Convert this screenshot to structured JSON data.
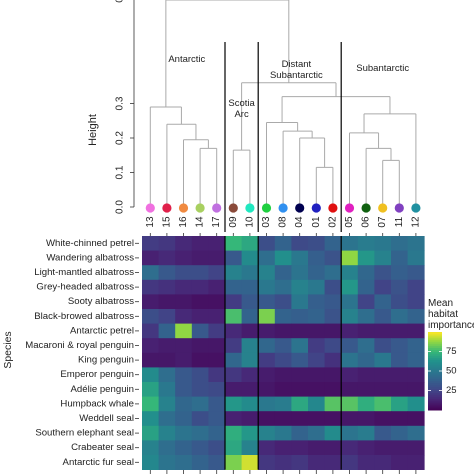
{
  "chart_data": [
    {
      "type": "dendrogram",
      "ylabel": "Height",
      "ylim": [
        0,
        0.6
      ],
      "yticks": [
        "0.0",
        "0.1",
        "0.2",
        "0.3"
      ],
      "leaves": [
        "13",
        "15",
        "16",
        "14",
        "17",
        "09",
        "10",
        "03",
        "08",
        "04",
        "01",
        "02",
        "05",
        "06",
        "07",
        "11",
        "12"
      ],
      "leaf_colors": [
        "#f070e0",
        "#e0204a",
        "#f08a40",
        "#a8d060",
        "#c070e0",
        "#8a4a3a",
        "#20e8c0",
        "#20d040",
        "#3090f0",
        "#000050",
        "#2020c0",
        "#e01010",
        "#e020c0",
        "#106010",
        "#f0c020",
        "#8040c0",
        "#2090a0"
      ],
      "merges": [
        {
          "a": 3,
          "b": 4,
          "h": 0.17
        },
        {
          "a": 2,
          "b": 17,
          "h": 0.195
        },
        {
          "a": 1,
          "b": 18,
          "h": 0.24
        },
        {
          "a": 0,
          "b": 19,
          "h": 0.29
        },
        {
          "a": 5,
          "b": 6,
          "h": 0.165
        },
        {
          "a": 10,
          "b": 11,
          "h": 0.115
        },
        {
          "a": 9,
          "b": 22,
          "h": 0.2
        },
        {
          "a": 8,
          "b": 23,
          "h": 0.22
        },
        {
          "a": 7,
          "b": 24,
          "h": 0.245
        },
        {
          "a": 14,
          "b": 15,
          "h": 0.135
        },
        {
          "a": 13,
          "b": 26,
          "h": 0.17
        },
        {
          "a": 12,
          "b": 27,
          "h": 0.215
        },
        {
          "a": 28,
          "b": 16,
          "h": 0.27
        },
        {
          "a": 25,
          "b": 29,
          "h": 0.32
        },
        {
          "a": 21,
          "b": 30,
          "h": 0.36
        },
        {
          "a": 20,
          "b": 31,
          "h": 0.6
        }
      ],
      "group_labels": [
        {
          "text": [
            "Antarctic"
          ],
          "leaf_pos": 2.2
        },
        {
          "text": [
            "Scotia",
            "Arc"
          ],
          "leaf_pos": 5.5
        },
        {
          "text": [
            "Distant",
            "Subantarctic"
          ],
          "leaf_pos": 8.8
        },
        {
          "text": [
            "Subantarctic"
          ],
          "leaf_pos": 14.0
        }
      ],
      "group_boundaries": [
        4.5,
        6.5,
        11.5
      ]
    },
    {
      "type": "heatmap",
      "ylabel": "Species",
      "legend_title": [
        "Mean",
        "habitat",
        "importance"
      ],
      "legend_ticks": [
        25,
        50,
        75
      ],
      "value_range": [
        0,
        100
      ],
      "columns": [
        "13",
        "15",
        "16",
        "14",
        "17",
        "09",
        "10",
        "03",
        "08",
        "04",
        "01",
        "02",
        "05",
        "06",
        "07",
        "11",
        "12"
      ],
      "rows": [
        "White-chinned petrel",
        "Wandering albatross",
        "Light-mantled albatross",
        "Grey-headed albatross",
        "Sooty albatross",
        "Black-browed albatross",
        "Antarctic petrel",
        "Macaroni & royal penguin",
        "King penguin",
        "Emperor penguin",
        "Adélie penguin",
        "Humpback whale",
        "Weddell seal",
        "Southern elephant seal",
        "Crabeater seal",
        "Antarctic fur seal"
      ],
      "values": [
        [
          22,
          20,
          15,
          12,
          12,
          75,
          70,
          30,
          40,
          28,
          30,
          40,
          48,
          52,
          50,
          45,
          48
        ],
        [
          12,
          15,
          12,
          10,
          10,
          35,
          60,
          45,
          62,
          50,
          38,
          32,
          88,
          65,
          55,
          40,
          50
        ],
        [
          45,
          35,
          30,
          30,
          25,
          55,
          50,
          55,
          40,
          48,
          40,
          45,
          55,
          42,
          32,
          38,
          35
        ],
        [
          20,
          18,
          15,
          15,
          12,
          40,
          40,
          50,
          45,
          55,
          50,
          30,
          65,
          40,
          25,
          32,
          25
        ],
        [
          10,
          8,
          8,
          6,
          6,
          22,
          35,
          35,
          30,
          50,
          38,
          35,
          48,
          25,
          40,
          30,
          25
        ],
        [
          30,
          25,
          15,
          12,
          12,
          78,
          40,
          85,
          40,
          38,
          40,
          32,
          55,
          45,
          35,
          45,
          40
        ],
        [
          20,
          40,
          88,
          35,
          22,
          15,
          10,
          10,
          8,
          8,
          8,
          8,
          12,
          10,
          10,
          10,
          10
        ],
        [
          12,
          10,
          10,
          8,
          8,
          22,
          55,
          42,
          35,
          48,
          22,
          28,
          35,
          45,
          30,
          35,
          40
        ],
        [
          8,
          8,
          10,
          6,
          6,
          42,
          55,
          22,
          28,
          35,
          25,
          18,
          48,
          42,
          50,
          35,
          40
        ],
        [
          60,
          45,
          35,
          30,
          20,
          20,
          15,
          10,
          8,
          8,
          8,
          8,
          12,
          10,
          10,
          10,
          10
        ],
        [
          68,
          50,
          35,
          30,
          28,
          10,
          10,
          8,
          6,
          6,
          6,
          6,
          8,
          8,
          8,
          8,
          8
        ],
        [
          75,
          55,
          42,
          45,
          35,
          65,
          60,
          50,
          52,
          70,
          58,
          80,
          80,
          72,
          78,
          68,
          62
        ],
        [
          62,
          45,
          40,
          30,
          35,
          12,
          10,
          6,
          6,
          6,
          6,
          6,
          8,
          8,
          6,
          6,
          6
        ],
        [
          68,
          55,
          48,
          45,
          40,
          72,
          65,
          55,
          50,
          40,
          45,
          60,
          48,
          52,
          35,
          40,
          45
        ],
        [
          55,
          45,
          40,
          35,
          30,
          70,
          55,
          15,
          12,
          12,
          10,
          10,
          15,
          12,
          10,
          10,
          10
        ],
        [
          58,
          48,
          45,
          40,
          35,
          85,
          95,
          20,
          18,
          20,
          15,
          15,
          20,
          15,
          15,
          12,
          12
        ]
      ]
    }
  ]
}
